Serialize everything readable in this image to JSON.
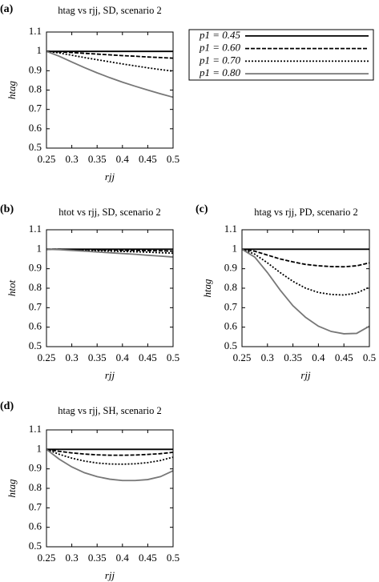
{
  "chart_data": [
    {
      "type": "line",
      "panel": "(a)",
      "title": "htag vs rjj, SD, scenario 2",
      "xlabel": "rjj",
      "ylabel": "htag",
      "x": [
        0.25,
        0.275,
        0.3,
        0.325,
        0.35,
        0.375,
        0.4,
        0.425,
        0.45,
        0.475,
        0.5
      ],
      "xlim": [
        0.25,
        0.5
      ],
      "xticks": [
        0.25,
        0.3,
        0.35,
        0.4,
        0.45,
        0.5
      ],
      "ylim": [
        0.5,
        1.1
      ],
      "yticks": [
        0.5,
        0.6,
        0.7,
        0.8,
        0.9,
        1,
        1.1
      ],
      "grid": false,
      "legend": "outside right",
      "series": [
        {
          "name": "p1 = 0.45",
          "color": "#000000",
          "dash": "none",
          "values": [
            1,
            1,
            1,
            1,
            1,
            1,
            1,
            1,
            1,
            1,
            1
          ]
        },
        {
          "name": "p1 = 0.60",
          "color": "#000000",
          "dash": "5 2",
          "values": [
            1,
            0.998,
            0.994,
            0.99,
            0.986,
            0.982,
            0.978,
            0.975,
            0.971,
            0.968,
            0.965
          ]
        },
        {
          "name": "p1 = 0.70",
          "color": "#000000",
          "dash": "2 2",
          "values": [
            1,
            0.992,
            0.98,
            0.968,
            0.957,
            0.946,
            0.935,
            0.925,
            0.915,
            0.906,
            0.898
          ]
        },
        {
          "name": "p1 = 0.80",
          "color": "#777777",
          "dash": "none",
          "values": [
            1,
            0.975,
            0.945,
            0.916,
            0.889,
            0.864,
            0.841,
            0.82,
            0.8,
            0.781,
            0.763
          ]
        }
      ]
    },
    {
      "type": "line",
      "panel": "(b)",
      "title": "htot vs rjj, SD, scenario 2",
      "xlabel": "rjj",
      "ylabel": "htot",
      "x": [
        0.25,
        0.275,
        0.3,
        0.325,
        0.35,
        0.375,
        0.4,
        0.425,
        0.45,
        0.475,
        0.5
      ],
      "xlim": [
        0.25,
        0.5
      ],
      "xticks": [
        0.25,
        0.3,
        0.35,
        0.4,
        0.45,
        0.5
      ],
      "ylim": [
        0.5,
        1.1
      ],
      "yticks": [
        0.5,
        0.6,
        0.7,
        0.8,
        0.9,
        1,
        1.1
      ],
      "grid": false,
      "series": [
        {
          "color": "#000000",
          "dash": "none",
          "values": [
            1,
            1,
            1,
            1,
            1,
            1,
            1,
            1,
            1,
            1,
            1
          ]
        },
        {
          "color": "#000000",
          "dash": "5 2",
          "values": [
            1,
            1,
            0.999,
            0.998,
            0.997,
            0.996,
            0.995,
            0.994,
            0.993,
            0.992,
            0.99
          ]
        },
        {
          "color": "#000000",
          "dash": "2 2",
          "values": [
            1,
            0.999,
            0.997,
            0.995,
            0.993,
            0.991,
            0.989,
            0.987,
            0.985,
            0.982,
            0.98
          ]
        },
        {
          "color": "#777777",
          "dash": "none",
          "values": [
            1,
            0.998,
            0.994,
            0.99,
            0.986,
            0.982,
            0.978,
            0.974,
            0.969,
            0.965,
            0.96
          ]
        }
      ]
    },
    {
      "type": "line",
      "panel": "(c)",
      "title": "htag vs rjj, PD, scenario 2",
      "xlabel": "rjj",
      "ylabel": "htag",
      "x": [
        0.25,
        0.275,
        0.3,
        0.325,
        0.35,
        0.375,
        0.4,
        0.425,
        0.45,
        0.475,
        0.5
      ],
      "xlim": [
        0.25,
        0.5
      ],
      "xticks": [
        0.25,
        0.3,
        0.35,
        0.4,
        0.45,
        0.5
      ],
      "ylim": [
        0.5,
        1.1
      ],
      "yticks": [
        0.5,
        0.6,
        0.7,
        0.8,
        0.9,
        1,
        1.1
      ],
      "grid": false,
      "series": [
        {
          "color": "#000000",
          "dash": "none",
          "values": [
            1,
            1,
            1,
            1,
            1,
            1,
            1,
            1,
            1,
            1,
            1
          ]
        },
        {
          "color": "#000000",
          "dash": "5 2",
          "values": [
            1,
            0.99,
            0.97,
            0.95,
            0.935,
            0.922,
            0.915,
            0.911,
            0.91,
            0.915,
            0.93
          ]
        },
        {
          "color": "#000000",
          "dash": "2 2",
          "values": [
            1,
            0.975,
            0.93,
            0.88,
            0.835,
            0.8,
            0.778,
            0.768,
            0.765,
            0.775,
            0.805
          ]
        },
        {
          "color": "#777777",
          "dash": "none",
          "values": [
            1,
            0.96,
            0.88,
            0.79,
            0.71,
            0.65,
            0.605,
            0.578,
            0.566,
            0.568,
            0.605
          ]
        }
      ]
    },
    {
      "type": "line",
      "panel": "(d)",
      "title": "htag vs rjj, SH, scenario 2",
      "xlabel": "rjj",
      "ylabel": "htag",
      "x": [
        0.25,
        0.275,
        0.3,
        0.325,
        0.35,
        0.375,
        0.4,
        0.425,
        0.45,
        0.475,
        0.5
      ],
      "xlim": [
        0.25,
        0.5
      ],
      "xticks": [
        0.25,
        0.3,
        0.35,
        0.4,
        0.45,
        0.5
      ],
      "ylim": [
        0.5,
        1.1
      ],
      "yticks": [
        0.5,
        0.6,
        0.7,
        0.8,
        0.9,
        1,
        1.1
      ],
      "grid": false,
      "series": [
        {
          "color": "#000000",
          "dash": "none",
          "values": [
            1,
            1,
            1,
            1,
            1,
            1,
            1,
            1,
            1,
            1,
            1
          ]
        },
        {
          "color": "#000000",
          "dash": "5 2",
          "values": [
            1,
            0.99,
            0.982,
            0.976,
            0.972,
            0.97,
            0.97,
            0.971,
            0.974,
            0.978,
            0.985
          ]
        },
        {
          "color": "#000000",
          "dash": "2 2",
          "values": [
            1,
            0.975,
            0.955,
            0.94,
            0.93,
            0.925,
            0.924,
            0.926,
            0.932,
            0.943,
            0.96
          ]
        },
        {
          "color": "#777777",
          "dash": "none",
          "values": [
            1,
            0.95,
            0.91,
            0.88,
            0.86,
            0.847,
            0.84,
            0.84,
            0.845,
            0.86,
            0.89
          ]
        }
      ]
    }
  ]
}
